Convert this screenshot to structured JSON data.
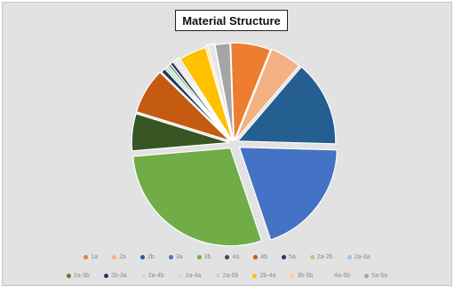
{
  "chart_data": {
    "type": "pie",
    "title": "Material Structure",
    "start_angle_deg": -2,
    "legend_position": "bottom",
    "slices": [
      {
        "label": "1a",
        "value": 7.0,
        "color": "#ed7d31",
        "explode": 0.7
      },
      {
        "label": "2a",
        "value": 5.5,
        "color": "#f4b183",
        "explode": 1.0
      },
      {
        "label": "2b",
        "value": 15.0,
        "color": "#255e91",
        "explode": 1.3
      },
      {
        "label": "3a",
        "value": 20.5,
        "color": "#4472c4",
        "explode": 2.0
      },
      {
        "label": "3b",
        "value": 30.5,
        "color": "#70ad47",
        "explode": 1.7
      },
      {
        "label": "4a",
        "value": 6.5,
        "color": "#375623",
        "explode": 1.2
      },
      {
        "label": "4b",
        "value": 8.0,
        "color": "#c55a11",
        "explode": 1.3
      },
      {
        "label": "5a",
        "value": 0.8,
        "color": "#1f3864",
        "explode": 1.0
      },
      {
        "label": "2a-2b",
        "value": 0.4,
        "color": "#a9d18e",
        "explode": 1.0
      },
      {
        "label": "2a-3a",
        "value": 0.4,
        "color": "#9dc3e6",
        "explode": 1.0
      },
      {
        "label": "2a-3b",
        "value": 0.4,
        "color": "#548235",
        "explode": 1.0
      },
      {
        "label": "2b-3a",
        "value": 0.6,
        "color": "#203864",
        "explode": 1.0
      },
      {
        "label": "2a-4b",
        "value": 0.4,
        "color": "#f8cbad",
        "explode": 1.0
      },
      {
        "label": "2a-4a",
        "value": 0.4,
        "color": "#d9d9d9",
        "explode": 1.0
      },
      {
        "label": "2a-5b",
        "value": 0.4,
        "color": "#bdd7ee",
        "explode": 1.0
      },
      {
        "label": "2b-4a",
        "value": 4.8,
        "color": "#ffc000",
        "explode": 0.5
      },
      {
        "label": "3b-5b",
        "value": 0.4,
        "color": "#ffd966",
        "explode": 1.0
      },
      {
        "label": "4a-5b",
        "value": 1.2,
        "color": "#e7e6e6",
        "explode": 1.0
      },
      {
        "label": "5a-5a",
        "value": 2.6,
        "color": "#a5a5a5",
        "explode": 0.6
      }
    ],
    "legend_rows": [
      [
        "1a",
        "2a",
        "2b",
        "3a",
        "3b",
        "4a",
        "4b",
        "5a",
        "2a-2b",
        "2a-3a"
      ],
      [
        "2a-3b",
        "2b-3a",
        "2a-4b",
        "2a-4a",
        "2a-5b",
        "2b-4a",
        "3b-5b",
        "4a-5b",
        "5a-5a"
      ]
    ]
  },
  "colors": {
    "background": "#e2e2e2",
    "border": "#c6c6c6"
  }
}
